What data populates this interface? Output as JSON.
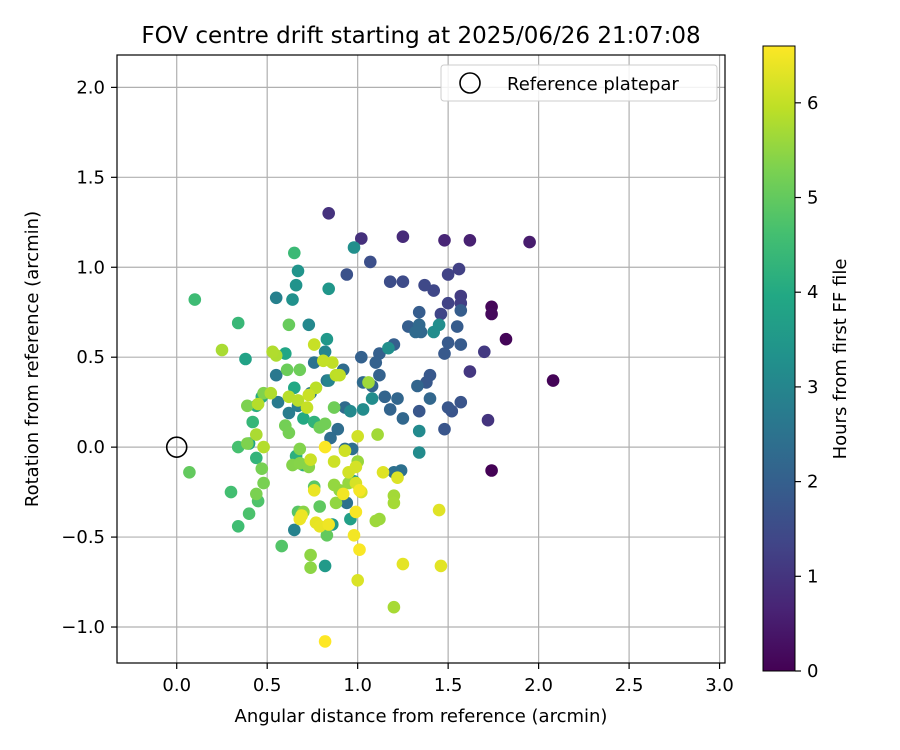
{
  "chart_data": {
    "type": "scatter",
    "title": "FOV centre drift starting at 2025/06/26 21:07:08",
    "xlabel": "Angular distance from reference (arcmin)",
    "ylabel": "Rotation from reference (arcmin)",
    "xlim": [
      -0.33,
      3.03
    ],
    "ylim": [
      -1.2,
      2.18
    ],
    "xticks": [
      0.0,
      0.5,
      1.0,
      1.5,
      2.0,
      2.5,
      3.0
    ],
    "xtick_labels": [
      "0.0",
      "0.5",
      "1.0",
      "1.5",
      "2.0",
      "2.5",
      "3.0"
    ],
    "yticks": [
      -1.0,
      -0.5,
      0.0,
      0.5,
      1.0,
      1.5,
      2.0
    ],
    "ytick_labels": [
      "−1.0",
      "−0.5",
      "0.0",
      "0.5",
      "1.0",
      "1.5",
      "2.0"
    ],
    "grid": true,
    "legend": {
      "placement": "top-right",
      "entries": [
        "Reference platepar"
      ]
    },
    "reference_point": {
      "x": 0.0,
      "y": 0.0
    },
    "colorbar": {
      "label": "Hours from first FF file",
      "colormap": "viridis",
      "range": [
        0,
        6.6
      ],
      "ticks": [
        0,
        1,
        2,
        3,
        4,
        5,
        6
      ],
      "tick_labels": [
        "0",
        "1",
        "2",
        "3",
        "4",
        "5",
        "6"
      ]
    },
    "points": [
      [
        1.74,
        -0.13,
        0.02
      ],
      [
        2.08,
        0.37,
        0.05
      ],
      [
        1.82,
        0.6,
        0.08
      ],
      [
        1.74,
        0.78,
        0.1
      ],
      [
        1.74,
        0.74,
        0.15
      ],
      [
        1.95,
        1.14,
        0.5
      ],
      [
        1.62,
        1.15,
        0.6
      ],
      [
        1.48,
        1.15,
        0.7
      ],
      [
        1.25,
        1.17,
        0.8
      ],
      [
        1.02,
        1.16,
        0.9
      ],
      [
        0.84,
        1.3,
        0.95
      ],
      [
        1.72,
        0.15,
        1.0
      ],
      [
        1.62,
        0.42,
        1.05
      ],
      [
        1.7,
        0.53,
        1.1
      ],
      [
        1.57,
        0.84,
        1.15
      ],
      [
        1.57,
        0.8,
        1.2
      ],
      [
        1.56,
        0.99,
        1.25
      ],
      [
        1.5,
        0.96,
        1.3
      ],
      [
        1.5,
        0.8,
        1.3
      ],
      [
        1.46,
        0.74,
        1.35
      ],
      [
        1.42,
        0.87,
        1.4
      ],
      [
        1.37,
        0.9,
        1.45
      ],
      [
        1.25,
        0.92,
        1.5
      ],
      [
        1.18,
        0.92,
        1.55
      ],
      [
        1.07,
        1.03,
        1.6
      ],
      [
        0.94,
        0.96,
        1.65
      ],
      [
        1.57,
        0.25,
        1.7
      ],
      [
        1.52,
        0.2,
        1.72
      ],
      [
        1.48,
        0.1,
        1.74
      ],
      [
        1.5,
        0.22,
        1.76
      ],
      [
        1.34,
        0.2,
        1.78
      ],
      [
        1.38,
        0.36,
        1.8
      ],
      [
        1.4,
        0.4,
        1.82
      ],
      [
        1.48,
        0.52,
        1.84
      ],
      [
        1.5,
        0.58,
        1.86
      ],
      [
        1.57,
        0.57,
        1.88
      ],
      [
        1.55,
        0.67,
        1.9
      ],
      [
        1.57,
        0.76,
        1.92
      ],
      [
        1.34,
        0.75,
        1.94
      ],
      [
        1.28,
        0.67,
        1.96
      ],
      [
        1.2,
        0.57,
        1.98
      ],
      [
        1.12,
        0.52,
        2.0
      ],
      [
        1.1,
        0.47,
        2.02
      ],
      [
        1.02,
        0.5,
        2.04
      ],
      [
        1.12,
        0.4,
        2.06
      ],
      [
        1.08,
        0.34,
        2.08
      ],
      [
        1.15,
        0.28,
        2.1
      ],
      [
        1.18,
        0.21,
        2.12
      ],
      [
        1.33,
        0.34,
        2.14
      ],
      [
        1.22,
        0.27,
        2.16
      ],
      [
        1.4,
        0.27,
        2.18
      ],
      [
        1.25,
        0.16,
        2.2
      ],
      [
        1.35,
        0.64,
        2.22
      ],
      [
        1.34,
        0.68,
        2.24
      ],
      [
        1.32,
        0.64,
        2.26
      ],
      [
        1.03,
        0.36,
        2.28
      ],
      [
        0.93,
        0.22,
        2.3
      ],
      [
        0.92,
        0.43,
        2.32
      ],
      [
        0.89,
        0.1,
        2.34
      ],
      [
        0.85,
        0.05,
        2.36
      ],
      [
        0.93,
        -0.01,
        2.38
      ],
      [
        0.97,
        -0.01,
        2.4
      ],
      [
        1.2,
        -0.14,
        2.42
      ],
      [
        1.24,
        -0.13,
        2.44
      ],
      [
        0.94,
        -0.31,
        2.46
      ],
      [
        0.76,
        0.47,
        2.5
      ],
      [
        0.74,
        0.3,
        2.55
      ],
      [
        0.83,
        0.37,
        2.6
      ],
      [
        0.55,
        0.4,
        2.65
      ],
      [
        0.56,
        0.25,
        2.7
      ],
      [
        0.62,
        0.19,
        2.75
      ],
      [
        0.67,
        0.23,
        2.8
      ],
      [
        0.55,
        0.83,
        2.85
      ],
      [
        0.65,
        -0.46,
        2.9
      ],
      [
        0.84,
        0.37,
        2.95
      ],
      [
        0.82,
        0.53,
        3.0
      ],
      [
        0.73,
        0.68,
        3.05
      ],
      [
        0.96,
        0.2,
        3.1
      ],
      [
        1.34,
        0.09,
        3.12
      ],
      [
        1.34,
        -0.03,
        3.14
      ],
      [
        1.03,
        0.21,
        3.16
      ],
      [
        1.08,
        0.27,
        3.18
      ],
      [
        1.42,
        0.64,
        3.2
      ],
      [
        1.45,
        0.68,
        3.22
      ],
      [
        1.17,
        0.55,
        3.24
      ],
      [
        0.98,
        1.11,
        3.26
      ],
      [
        0.64,
        0.82,
        3.3
      ],
      [
        0.66,
        0.9,
        3.35
      ],
      [
        0.67,
        0.98,
        3.4
      ],
      [
        0.84,
        0.88,
        3.45
      ],
      [
        0.83,
        0.6,
        3.5
      ],
      [
        0.82,
        -0.66,
        3.55
      ],
      [
        0.86,
        -0.43,
        3.6
      ],
      [
        0.98,
        -0.19,
        3.65
      ],
      [
        0.96,
        -0.4,
        3.7
      ],
      [
        0.38,
        0.49,
        3.8
      ],
      [
        0.4,
        0.02,
        3.85
      ],
      [
        0.6,
        0.52,
        3.9
      ],
      [
        0.65,
        0.33,
        3.95
      ],
      [
        0.7,
        0.16,
        4.0
      ],
      [
        0.47,
        0.28,
        4.05
      ],
      [
        0.44,
        0.23,
        4.1
      ],
      [
        0.66,
        -0.05,
        4.15
      ],
      [
        0.7,
        -0.1,
        4.2
      ],
      [
        0.76,
        0.14,
        4.25
      ],
      [
        0.44,
        -0.06,
        4.3
      ],
      [
        0.42,
        0.14,
        4.35
      ],
      [
        0.34,
        0.69,
        4.4
      ],
      [
        0.65,
        1.08,
        4.45
      ],
      [
        0.1,
        0.82,
        4.5
      ],
      [
        0.34,
        -0.44,
        4.55
      ],
      [
        0.3,
        -0.25,
        4.6
      ],
      [
        0.34,
        0.0,
        4.65
      ],
      [
        0.4,
        -0.37,
        4.7
      ],
      [
        0.45,
        -0.3,
        4.75
      ],
      [
        0.58,
        -0.55,
        4.8
      ],
      [
        0.67,
        -0.36,
        4.85
      ],
      [
        0.76,
        -0.22,
        4.9
      ],
      [
        0.79,
        -0.33,
        4.95
      ],
      [
        0.83,
        -0.49,
        5.0
      ],
      [
        0.07,
        -0.14,
        5.0
      ],
      [
        0.62,
        0.68,
        5.05
      ],
      [
        0.61,
        0.43,
        5.1
      ],
      [
        0.68,
        0.43,
        5.12
      ],
      [
        0.87,
        0.22,
        5.14
      ],
      [
        0.79,
        0.11,
        5.16
      ],
      [
        0.82,
        0.13,
        5.18
      ],
      [
        0.6,
        0.12,
        5.2
      ],
      [
        0.62,
        0.08,
        5.22
      ],
      [
        0.47,
        -0.12,
        5.24
      ],
      [
        0.48,
        -0.2,
        5.26
      ],
      [
        0.44,
        -0.26,
        5.28
      ],
      [
        0.39,
        0.23,
        5.3
      ],
      [
        0.39,
        0.02,
        5.32
      ],
      [
        0.48,
        0.3,
        5.34
      ],
      [
        0.68,
        -0.01,
        5.36
      ],
      [
        0.64,
        -0.1,
        5.38
      ],
      [
        0.68,
        -0.09,
        5.4
      ],
      [
        0.73,
        -0.11,
        5.42
      ],
      [
        0.7,
        -0.36,
        5.44
      ],
      [
        0.74,
        -0.67,
        5.46
      ],
      [
        0.74,
        -0.6,
        5.48
      ],
      [
        0.9,
        -0.24,
        5.5
      ],
      [
        0.88,
        -0.31,
        5.52
      ],
      [
        0.87,
        -0.21,
        5.54
      ],
      [
        0.95,
        -0.2,
        5.56
      ],
      [
        1.0,
        -0.08,
        5.58
      ],
      [
        1.12,
        -0.4,
        5.6
      ],
      [
        1.1,
        -0.41,
        5.62
      ],
      [
        1.06,
        0.36,
        5.64
      ],
      [
        1.11,
        0.07,
        5.66
      ],
      [
        1.2,
        -0.27,
        5.68
      ],
      [
        1.2,
        -0.31,
        5.7
      ],
      [
        1.2,
        -0.89,
        5.72
      ],
      [
        0.25,
        0.54,
        5.74
      ],
      [
        0.44,
        0.07,
        5.76
      ],
      [
        0.55,
        0.51,
        5.78
      ],
      [
        0.52,
        0.3,
        5.8
      ],
      [
        0.53,
        0.53,
        5.82
      ],
      [
        0.48,
        0.0,
        5.84
      ],
      [
        0.45,
        0.24,
        5.86
      ],
      [
        0.62,
        0.28,
        5.88
      ],
      [
        0.67,
        0.26,
        5.9
      ],
      [
        0.77,
        0.33,
        5.92
      ],
      [
        0.88,
        0.4,
        5.94
      ],
      [
        0.9,
        0.4,
        5.96
      ],
      [
        0.86,
        0.47,
        5.98
      ],
      [
        0.81,
        0.48,
        6.0
      ],
      [
        0.72,
        0.22,
        6.02
      ],
      [
        0.76,
        0.57,
        6.04
      ],
      [
        0.73,
        0.29,
        6.06
      ],
      [
        0.74,
        -0.07,
        6.08
      ],
      [
        0.87,
        -0.08,
        6.1
      ],
      [
        0.93,
        -0.02,
        6.12
      ],
      [
        1.0,
        0.06,
        6.14
      ],
      [
        0.95,
        -0.14,
        6.16
      ],
      [
        0.99,
        -0.11,
        6.18
      ],
      [
        0.99,
        -0.2,
        6.2
      ],
      [
        1.02,
        -0.25,
        6.22
      ],
      [
        1.0,
        -0.74,
        6.24
      ],
      [
        1.22,
        -0.17,
        6.26
      ],
      [
        1.14,
        -0.14,
        6.28
      ],
      [
        1.45,
        -0.35,
        6.3
      ],
      [
        1.46,
        -0.66,
        6.32
      ],
      [
        1.25,
        -0.65,
        6.34
      ],
      [
        0.77,
        -0.42,
        6.36
      ],
      [
        0.79,
        -0.44,
        6.38
      ],
      [
        0.76,
        -0.24,
        6.4
      ],
      [
        0.69,
        -0.38,
        6.42
      ],
      [
        0.68,
        -0.4,
        6.44
      ],
      [
        0.84,
        -0.43,
        6.46
      ],
      [
        0.92,
        -0.26,
        6.48
      ],
      [
        0.98,
        -0.49,
        6.5
      ],
      [
        1.01,
        -0.24,
        6.52
      ],
      [
        0.99,
        -0.36,
        6.54
      ],
      [
        1.01,
        -0.57,
        6.56
      ],
      [
        0.82,
        0.0,
        6.58
      ],
      [
        0.82,
        -1.08,
        6.6
      ]
    ]
  }
}
